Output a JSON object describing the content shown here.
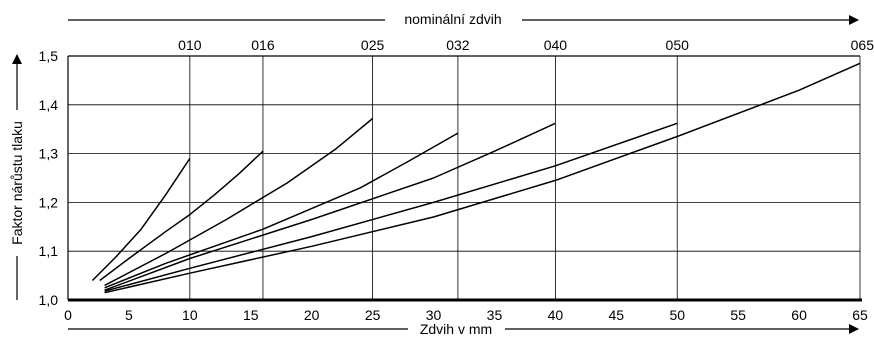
{
  "chart_data": {
    "type": "line",
    "top_label": "nominální zdvih",
    "xlabel": "Zdvih v mm",
    "ylabel": "Faktor nárůstu tlaku",
    "xlim": [
      0,
      65
    ],
    "ylim": [
      1.0,
      1.5
    ],
    "x_ticks": [
      0,
      5,
      10,
      15,
      20,
      25,
      30,
      35,
      40,
      45,
      50,
      55,
      60,
      65
    ],
    "y_ticks": [
      1.0,
      1.1,
      1.2,
      1.3,
      1.4,
      1.5
    ],
    "y_tick_labels": [
      "1,0",
      "1,1",
      "1,2",
      "1,3",
      "1,4",
      "1,5"
    ],
    "top_ticks": [
      {
        "label": "010",
        "x": 10
      },
      {
        "label": "016",
        "x": 16
      },
      {
        "label": "025",
        "x": 25
      },
      {
        "label": "032",
        "x": 32
      },
      {
        "label": "040",
        "x": 40
      },
      {
        "label": "050",
        "x": 50
      },
      {
        "label": "065",
        "x": 65
      }
    ],
    "grid": true,
    "series": [
      {
        "x": [
          2,
          4,
          6,
          8,
          10
        ],
        "y": [
          1.04,
          1.09,
          1.145,
          1.215,
          1.29
        ]
      },
      {
        "x": [
          2.6,
          5,
          8,
          10,
          12,
          14,
          16
        ],
        "y": [
          1.04,
          1.085,
          1.14,
          1.175,
          1.215,
          1.258,
          1.305
        ]
      },
      {
        "x": [
          3,
          8,
          13,
          18,
          22,
          25
        ],
        "y": [
          1.03,
          1.095,
          1.165,
          1.24,
          1.31,
          1.372
        ]
      },
      {
        "x": [
          3,
          8,
          16,
          24,
          28,
          32
        ],
        "y": [
          1.025,
          1.075,
          1.145,
          1.23,
          1.285,
          1.342
        ]
      },
      {
        "x": [
          3,
          10,
          20,
          30,
          35,
          40
        ],
        "y": [
          1.02,
          1.085,
          1.165,
          1.25,
          1.305,
          1.362
        ]
      },
      {
        "x": [
          3,
          10,
          20,
          30,
          40,
          50
        ],
        "y": [
          1.018,
          1.065,
          1.13,
          1.2,
          1.275,
          1.362
        ]
      },
      {
        "x": [
          3,
          10,
          20,
          30,
          40,
          50,
          60,
          65
        ],
        "y": [
          1.015,
          1.055,
          1.11,
          1.17,
          1.245,
          1.335,
          1.43,
          1.485
        ]
      }
    ]
  }
}
